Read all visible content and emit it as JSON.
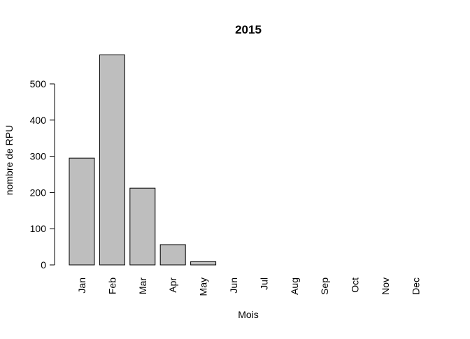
{
  "chart_data": {
    "type": "bar",
    "title": "2015",
    "xlabel": "Mois",
    "ylabel": "nombre de RPU",
    "categories": [
      "Jan",
      "Feb",
      "Mar",
      "Apr",
      "May",
      "Jun",
      "Jul",
      "Aug",
      "Sep",
      "Oct",
      "Nov",
      "Dec"
    ],
    "values": [
      295,
      580,
      212,
      56,
      9,
      0,
      0,
      0,
      0,
      0,
      0,
      0
    ],
    "yticks": [
      0,
      100,
      200,
      300,
      400,
      500
    ],
    "ylim": [
      0,
      580
    ],
    "grid": false,
    "bar_color": "#bebebe"
  }
}
